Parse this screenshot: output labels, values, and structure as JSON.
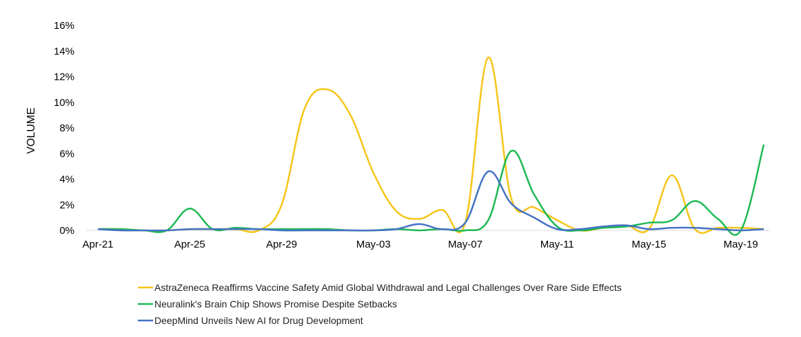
{
  "chart_data": {
    "type": "line",
    "ylabel": "VOLUME",
    "xlabel": "",
    "ylim": [
      0,
      16
    ],
    "y_ticks": [
      "0%",
      "2%",
      "4%",
      "6%",
      "8%",
      "10%",
      "12%",
      "14%",
      "16%"
    ],
    "x_tick_labels": [
      "Apr-21",
      "Apr-25",
      "Apr-29",
      "May-03",
      "May-07",
      "May-11",
      "May-15",
      "May-19"
    ],
    "x": [
      "Apr-21",
      "Apr-22",
      "Apr-23",
      "Apr-24",
      "Apr-25",
      "Apr-26",
      "Apr-27",
      "Apr-28",
      "Apr-29",
      "Apr-30",
      "May-01",
      "May-02",
      "May-03",
      "May-04",
      "May-05",
      "May-06",
      "May-07",
      "May-08",
      "May-09",
      "May-10",
      "May-11",
      "May-12",
      "May-13",
      "May-14",
      "May-15",
      "May-16",
      "May-17",
      "May-18",
      "May-19",
      "May-20"
    ],
    "grid": false,
    "legend_position": "bottom",
    "series": [
      {
        "name": "AstraZeneca Reaffirms Vaccine Safety Amid Global Withdrawal and Legal Challenges Over Rare Side Effects",
        "color": "#F5C518",
        "values": [
          0.1,
          0.1,
          0,
          0,
          0.1,
          0.1,
          0.1,
          0,
          2.0,
          9.5,
          11.0,
          9.0,
          4.5,
          1.5,
          0.9,
          1.6,
          0.6,
          13.5,
          2.5,
          1.8,
          0.8,
          0,
          0.2,
          0.4,
          0.1,
          4.3,
          0.1,
          0.2,
          0.2,
          0.1
        ]
      },
      {
        "name": "Neuralink's Brain Chip Shows Promise Despite Setbacks",
        "color": "#1DB954",
        "values": [
          0.1,
          0.1,
          0,
          0,
          1.7,
          0.1,
          0.2,
          0.1,
          0.1,
          0.1,
          0.1,
          0,
          0,
          0.1,
          0,
          0.1,
          0,
          0.8,
          6.2,
          2.8,
          0.3,
          0,
          0.2,
          0.3,
          0.6,
          0.8,
          2.3,
          0.9,
          0,
          6.7
        ]
      },
      {
        "name": "DeepMind Unveils New AI for Drug Development",
        "color": "#4472C4",
        "values": [
          0.1,
          0,
          0,
          0,
          0.1,
          0.1,
          0.1,
          0.1,
          0,
          0,
          0,
          0,
          0,
          0.1,
          0.5,
          0.1,
          0.6,
          4.6,
          2.1,
          1.0,
          0.1,
          0.1,
          0.3,
          0.4,
          0.1,
          0.2,
          0.2,
          0.1,
          0,
          0.1
        ]
      }
    ]
  }
}
